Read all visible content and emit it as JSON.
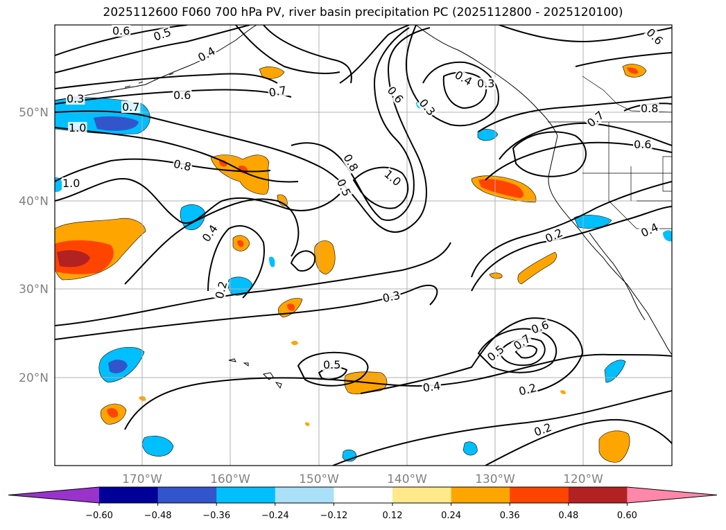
{
  "title": "2025112600 F060 700 hPa PV, river basin precipitation PC (2025112800 - 2025120100)",
  "map": {
    "longitude_labels": [
      "170°W",
      "160°W",
      "150°W",
      "140°W",
      "130°W",
      "120°W"
    ],
    "latitude_labels": [
      "50°N",
      "40°N",
      "30°N",
      "20°N"
    ],
    "pv_contour_labels": [
      "0.6",
      "0.5",
      "0.4",
      "0.6",
      "0.7",
      "0.3",
      "0.7",
      "1.0",
      "0.8",
      "0.4",
      "0.2",
      "0.8",
      "0.5",
      "1.0",
      "0.6",
      "0.3",
      "0.4",
      "0.3",
      "0.7",
      "0.8",
      "0.6",
      "0.2",
      "0.4",
      "0.3",
      "0.5",
      "0.4",
      "0.5",
      "0.7",
      "0.6",
      "0.2",
      "0.2",
      "1.0",
      "0.6"
    ],
    "colors": {
      "contour": "#000000",
      "grid": "#b0b0b0",
      "coast": "#000000"
    }
  },
  "colorbar": {
    "tick_labels": [
      "−0.60",
      "−0.48",
      "−0.36",
      "−0.24",
      "−0.12",
      "0.12",
      "0.24",
      "0.36",
      "0.48",
      "0.60"
    ],
    "bins": [
      {
        "lo": null,
        "hi": -0.6,
        "color": "#9933cc"
      },
      {
        "lo": -0.6,
        "hi": -0.48,
        "color": "#000099"
      },
      {
        "lo": -0.48,
        "hi": -0.36,
        "color": "#3355cc"
      },
      {
        "lo": -0.36,
        "hi": -0.24,
        "color": "#00bfff"
      },
      {
        "lo": -0.24,
        "hi": -0.12,
        "color": "#aae0f8"
      },
      {
        "lo": -0.12,
        "hi": 0.12,
        "color": "#ffffff"
      },
      {
        "lo": 0.12,
        "hi": 0.24,
        "color": "#ffe98a"
      },
      {
        "lo": 0.24,
        "hi": 0.36,
        "color": "#ffa500"
      },
      {
        "lo": 0.36,
        "hi": 0.48,
        "color": "#ff4400"
      },
      {
        "lo": 0.48,
        "hi": 0.6,
        "color": "#b22222"
      },
      {
        "lo": 0.6,
        "hi": null,
        "color": "#ff88aa"
      }
    ]
  }
}
